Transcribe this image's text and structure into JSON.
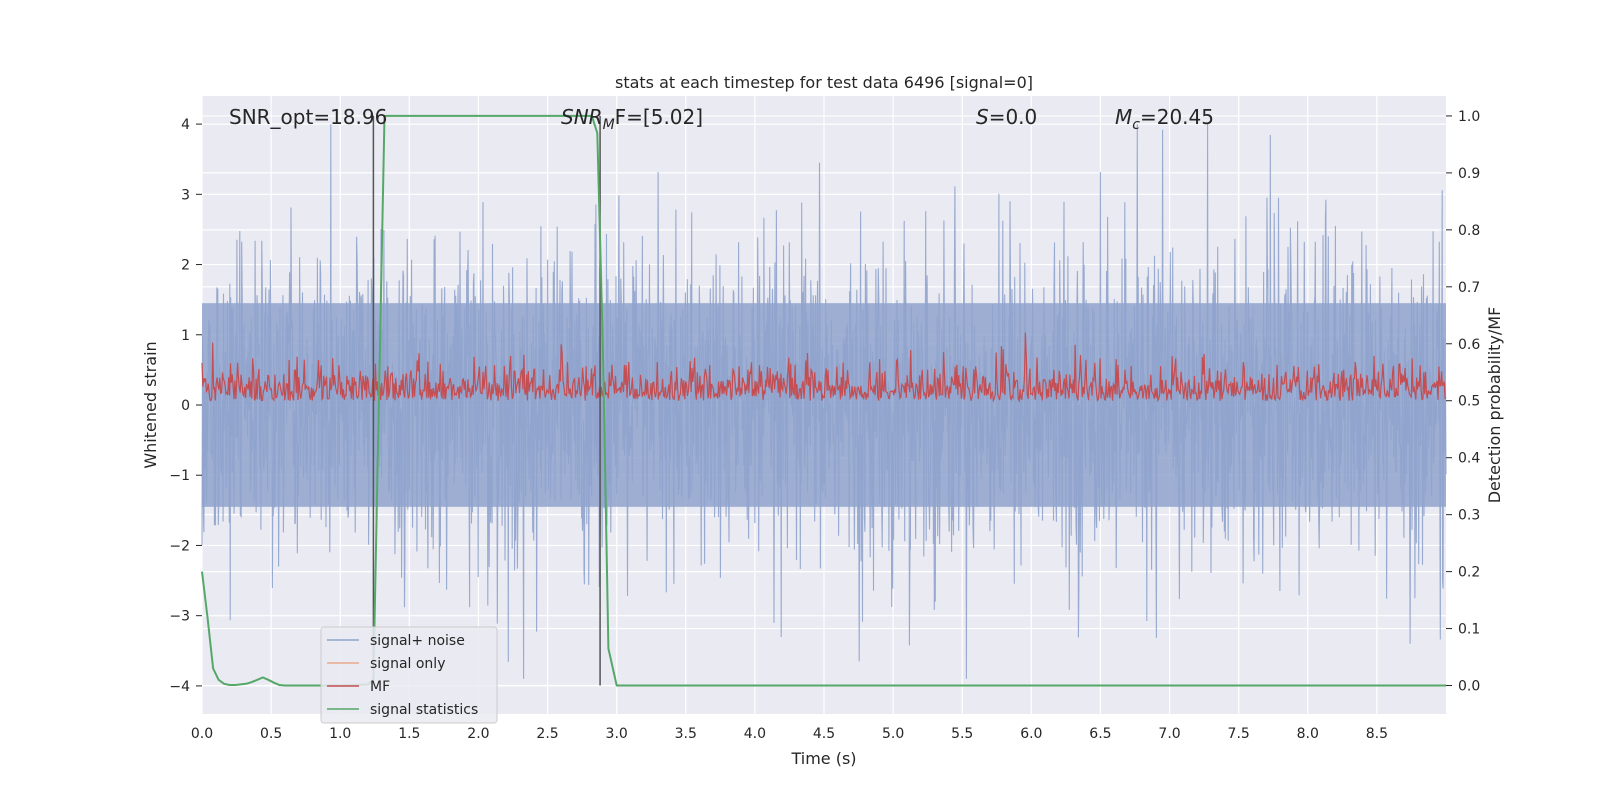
{
  "chart_data": {
    "type": "line",
    "title": "stats at each timestep for test data 6496 [signal=0]",
    "xlabel": "Time (s)",
    "ylabel": "Whitened strain",
    "ylabel_right": "Detection probability/MF",
    "xlim": [
      0,
      9
    ],
    "ylim": [
      -4.4,
      4.4
    ],
    "ylim_right": [
      -0.05,
      1.035
    ],
    "x_ticks": [
      0.0,
      0.5,
      1.0,
      1.5,
      2.0,
      2.5,
      3.0,
      3.5,
      4.0,
      4.5,
      5.0,
      5.5,
      6.0,
      6.5,
      7.0,
      7.5,
      8.0,
      8.5
    ],
    "x_tick_labels": [
      "0.0",
      "0.5",
      "1.0",
      "1.5",
      "2.0",
      "2.5",
      "3.0",
      "3.5",
      "4.0",
      "4.5",
      "5.0",
      "5.5",
      "6.0",
      "6.5",
      "7.0",
      "7.5",
      "8.0",
      "8.5"
    ],
    "y_ticks": [
      -4,
      -3,
      -2,
      -1,
      0,
      1,
      2,
      3,
      4
    ],
    "y_tick_labels": [
      "−4",
      "−3",
      "−2",
      "−1",
      "0",
      "1",
      "2",
      "3",
      "4"
    ],
    "y_ticks_right": [
      0.0,
      0.1,
      0.2,
      0.3,
      0.4,
      0.5,
      0.6,
      0.7,
      0.8,
      0.9,
      1.0
    ],
    "y_tick_labels_right": [
      "0.0",
      "0.1",
      "0.2",
      "0.3",
      "0.4",
      "0.5",
      "0.6",
      "0.7",
      "0.8",
      "0.9",
      "1.0"
    ],
    "annotations": {
      "snr_opt": "SNR_opt=18.96",
      "snr_mf_base": "SNR",
      "snr_mf_sub": "M",
      "snr_mf_rest": "F=[5.02]",
      "s_var": "S",
      "s_val": "=0.0",
      "mc_base": "M",
      "mc_sub": "c",
      "mc_val": "=20.45"
    },
    "vlines_x": [
      1.24,
      2.88
    ],
    "series": [
      {
        "name": "signal+ noise",
        "color": "#8fa3cc",
        "description": "whitened noisy strain, fluctuates roughly between -3.9 and 4.0",
        "range": [
          -3.9,
          4.0
        ]
      },
      {
        "name": "signal only",
        "color": "#e8a98a",
        "values": []
      },
      {
        "name": "MF",
        "color": "#c44e52",
        "description": "matched filter output on right axis, approx 0.5 to 0.6 with peaks ~0.65",
        "range": [
          0.5,
          0.65
        ]
      },
      {
        "name": "signal statistics",
        "color": "#55a868",
        "x": [
          0.0,
          0.04,
          0.08,
          0.12,
          0.16,
          0.2,
          0.24,
          0.28,
          0.32,
          0.36,
          0.4,
          0.44,
          0.48,
          0.52,
          0.56,
          0.6,
          0.8,
          1.0,
          1.2,
          1.24,
          1.28,
          1.32,
          1.4,
          1.8,
          2.2,
          2.6,
          2.82,
          2.86,
          2.9,
          2.94,
          3.0,
          3.2,
          4.0,
          5.0,
          6.0,
          7.0,
          8.0,
          9.0
        ],
        "values": [
          0.2,
          0.12,
          0.03,
          0.01,
          0.003,
          0.001,
          0.001,
          0.002,
          0.003,
          0.006,
          0.01,
          0.014,
          0.01,
          0.005,
          0.001,
          0.0,
          0.0,
          0.0,
          0.002,
          0.01,
          0.5,
          1.0,
          1.0,
          1.0,
          1.0,
          1.0,
          1.0,
          0.97,
          0.6,
          0.065,
          0.0,
          0.0,
          0.0,
          0.0,
          0.0,
          0.0,
          0.0,
          0.0
        ]
      }
    ],
    "legend": {
      "placement": "lower-left",
      "labels": [
        "signal+ noise",
        "signal only",
        "MF",
        "signal statistics"
      ]
    }
  }
}
